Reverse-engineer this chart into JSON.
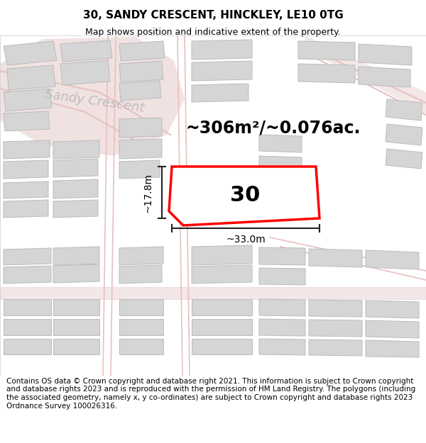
{
  "title": "30, SANDY CRESCENT, HINCKLEY, LE10 0TG",
  "subtitle": "Map shows position and indicative extent of the property.",
  "footer": "Contains OS data © Crown copyright and database right 2021. This information is subject to Crown copyright and database rights 2023 and is reproduced with the permission of HM Land Registry. The polygons (including the associated geometry, namely x, y co-ordinates) are subject to Crown copyright and database rights 2023 Ordnance Survey 100026316.",
  "area_label": "~306m²/~0.076ac.",
  "width_label": "~33.0m",
  "height_label": "~17.8m",
  "plot_number": "30",
  "map_bg": "#eeecec",
  "road_color": "#e8c0c0",
  "building_fill": "#d5d5d5",
  "building_edge": "#bbbbbb",
  "plot_outline_color": "#ff0000",
  "dim_line_color": "#222222",
  "title_fontsize": 11,
  "subtitle_fontsize": 9,
  "footer_fontsize": 7.5,
  "area_fontsize": 17,
  "dim_fontsize": 10,
  "plot_num_fontsize": 22,
  "street_fontsize": 13
}
